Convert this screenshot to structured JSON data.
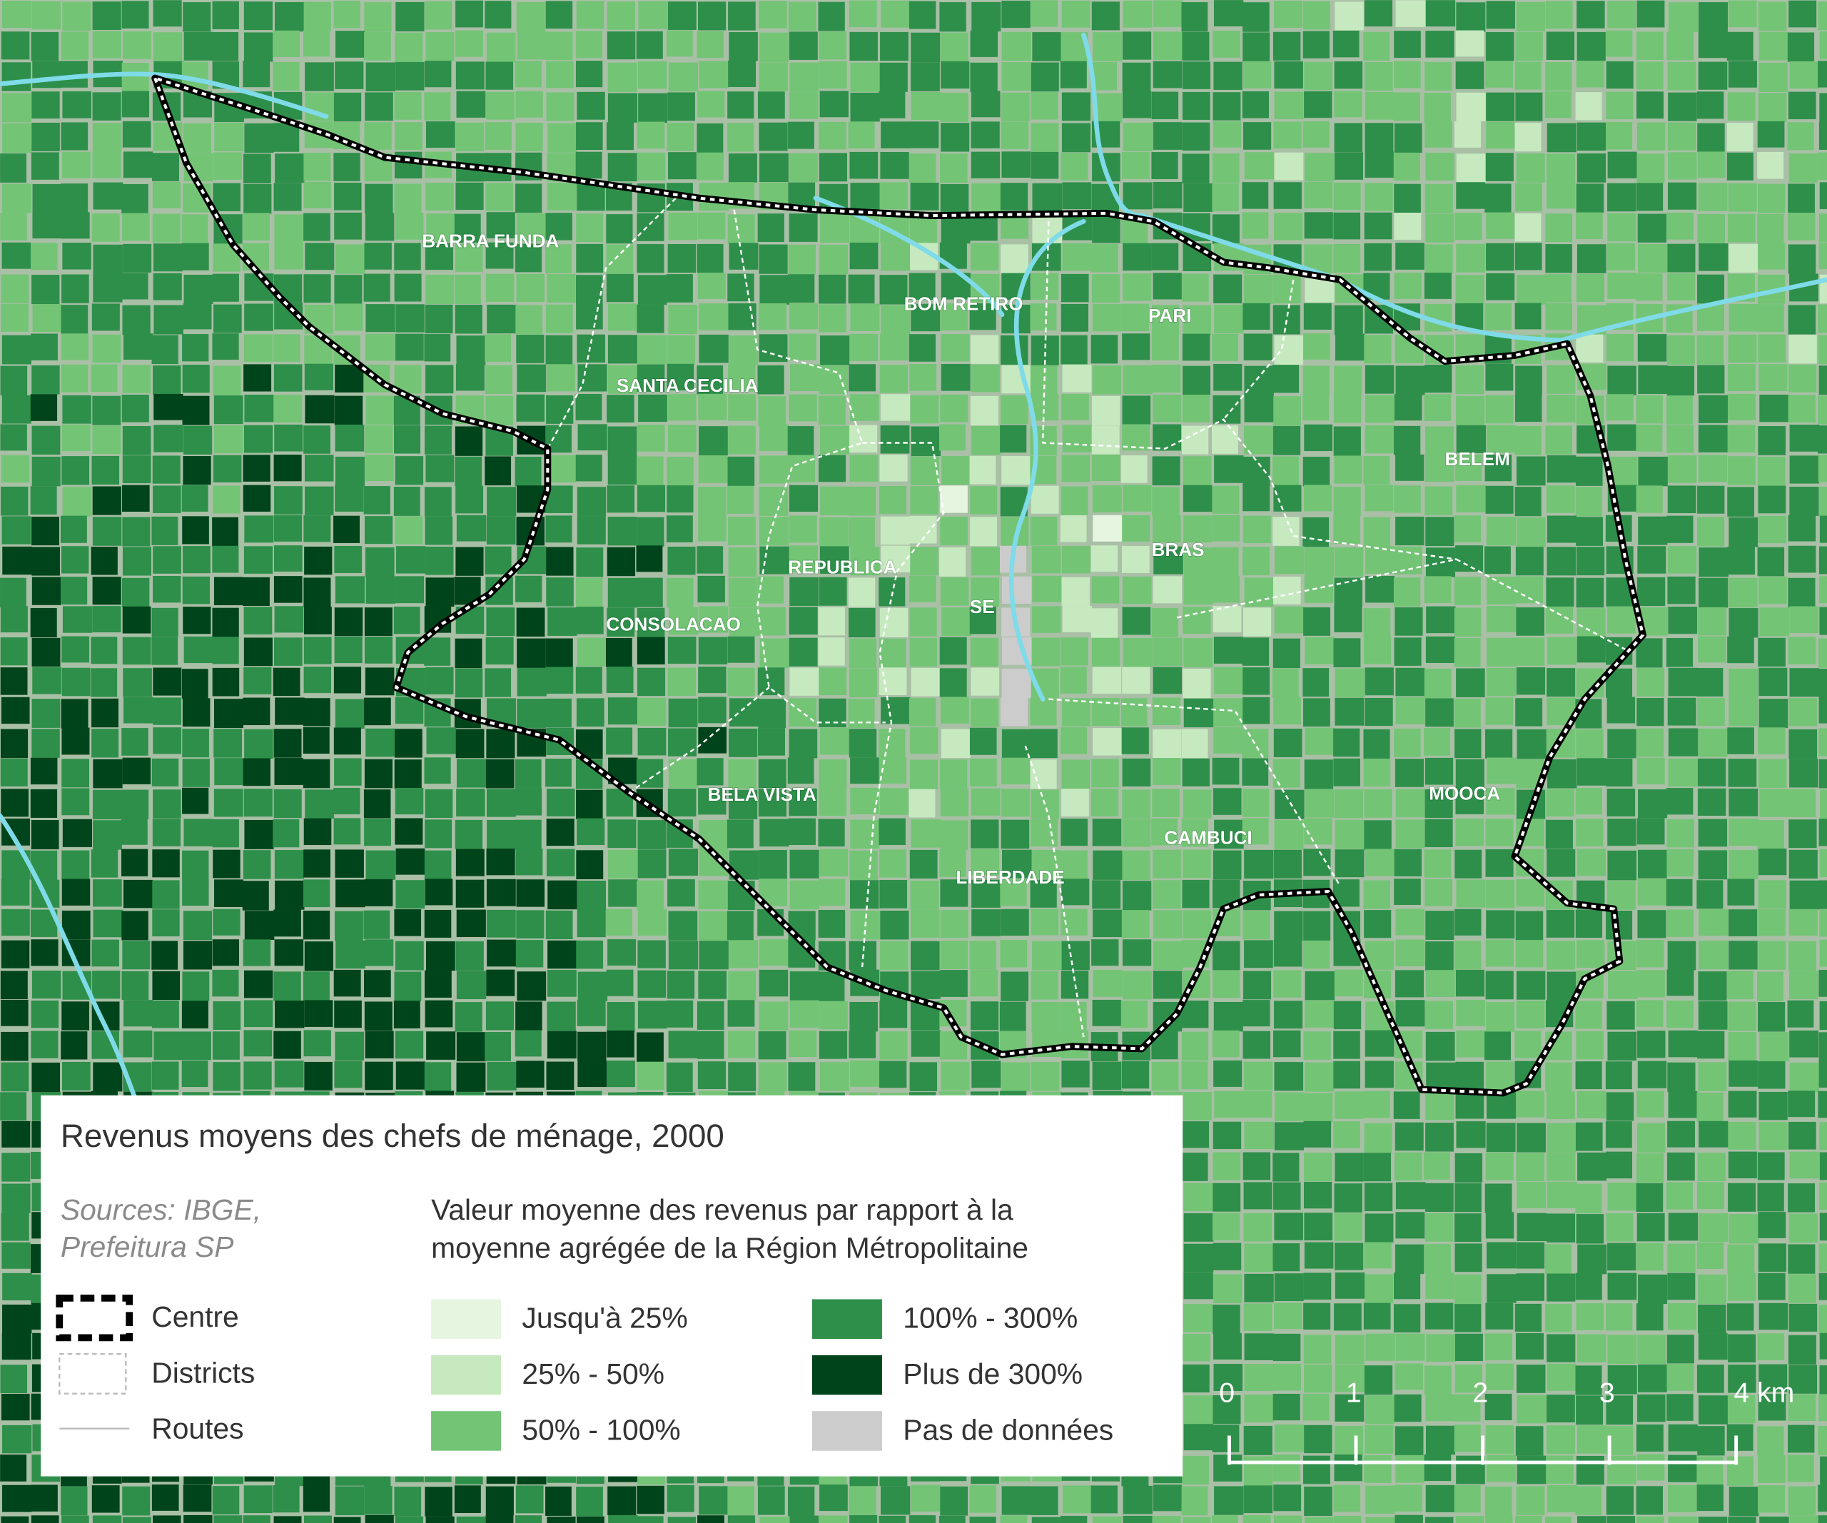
{
  "map": {
    "districts": [
      {
        "label": "BARRA FUNDA"
      },
      {
        "label": "BOM RETIRO"
      },
      {
        "label": "PARI"
      },
      {
        "label": "SANTA CECILIA"
      },
      {
        "label": "BELEM"
      },
      {
        "label": "REPUBLICA"
      },
      {
        "label": "BRAS"
      },
      {
        "label": "SE"
      },
      {
        "label": "CONSOLACAO"
      },
      {
        "label": "BELA VISTA"
      },
      {
        "label": "MOOCA"
      },
      {
        "label": "CAMBUCI"
      },
      {
        "label": "LIBERDADE"
      }
    ]
  },
  "legend": {
    "title": "Revenus moyens des chefs de ménage, 2000",
    "sources": [
      "Sources: IBGE,",
      "Prefeitura SP"
    ],
    "symbols": [
      {
        "label": "Centre"
      },
      {
        "label": "Districts"
      },
      {
        "label": "Routes"
      }
    ],
    "subtitle": [
      "Valeur moyenne des revenus par rapport à la",
      "moyenne agrégée de la Région Métropolitaine"
    ],
    "classes": [
      {
        "label": "Jusqu'à 25%",
        "color": "#e5f5e0"
      },
      {
        "label": "25% - 50%",
        "color": "#c7e9c0"
      },
      {
        "label": "50% - 100%",
        "color": "#74c476"
      },
      {
        "label": "100% - 300%",
        "color": "#2e8f4a"
      },
      {
        "label": "Plus de 300%",
        "color": "#00441b"
      },
      {
        "label": "Pas de données",
        "color": "#cccccc"
      }
    ]
  },
  "scale": {
    "ticks": [
      0,
      1,
      2,
      3,
      {
        "value": 4,
        "label": "4 km"
      }
    ]
  }
}
